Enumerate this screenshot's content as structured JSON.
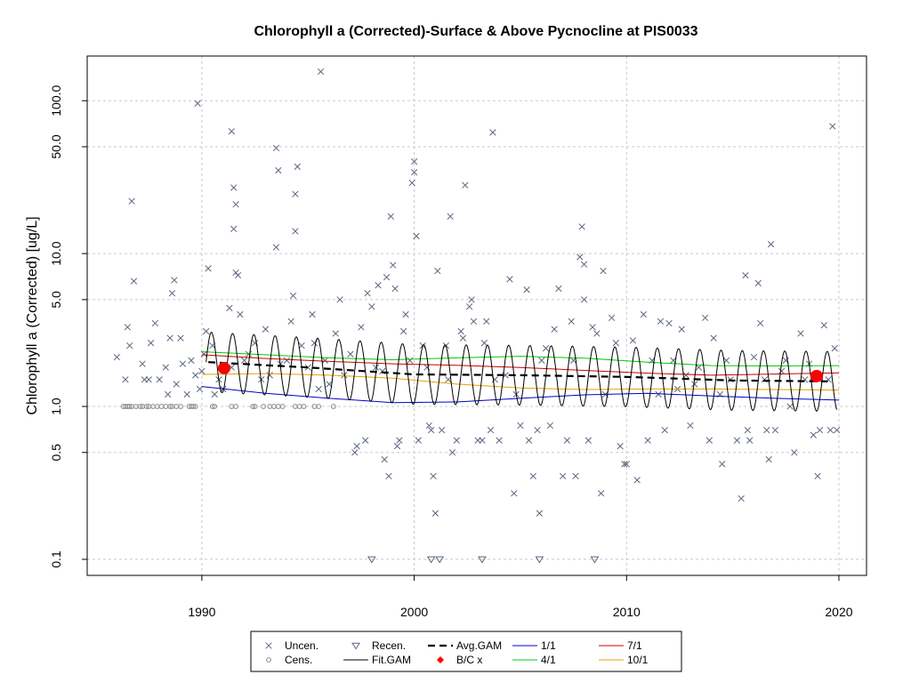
{
  "chart_data": {
    "type": "scatter",
    "title": "Chlorophyll a (Corrected)-Surface & Above Pycnocline at PIS0033",
    "xlabel": "",
    "ylabel": "Chlorophyll a (Corrected) [ug/L]",
    "y_scale": "log",
    "xlim": [
      1984.6,
      2021.3
    ],
    "ylim": [
      0.0785,
      196
    ],
    "x_ticks": [
      "1990",
      "2000",
      "2010",
      "2020"
    ],
    "x_tick_values": [
      1990,
      2000,
      2010,
      2020
    ],
    "y_ticks": [
      "0.1",
      "0.5",
      "1.0",
      "5.0",
      "10.0",
      "50.0",
      "100.0"
    ],
    "y_tick_values": [
      0.1,
      0.5,
      1.0,
      5.0,
      10.0,
      50.0,
      100.0
    ],
    "grid": true,
    "legend_position": "bottom-center",
    "colors": {
      "uncen": "#5a6680",
      "cens": "#8a8a8a",
      "recen": "#5a6680",
      "fit": "#000000",
      "avg": "#000000",
      "bc": "#ff0000",
      "q1": "#0000cc",
      "q4": "#00cc00",
      "q7": "#cc0000",
      "q10": "#e8a000"
    },
    "legend": [
      {
        "key": "uncen",
        "label": "Uncen."
      },
      {
        "key": "cens",
        "label": "Cens."
      },
      {
        "key": "recen",
        "label": "Recen."
      },
      {
        "key": "fit",
        "label": "Fit.GAM"
      },
      {
        "key": "avg",
        "label": "Avg.GAM"
      },
      {
        "key": "bc",
        "label": "B/C x"
      },
      {
        "key": "q1",
        "label": "1/1"
      },
      {
        "key": "q4",
        "label": "4/1"
      },
      {
        "key": "q7",
        "label": "7/1"
      },
      {
        "key": "q10",
        "label": "10/1"
      }
    ],
    "uncensored": [
      [
        1986.0,
        2.1
      ],
      [
        1986.4,
        1.5
      ],
      [
        1986.5,
        3.3
      ],
      [
        1986.6,
        2.5
      ],
      [
        1986.7,
        22
      ],
      [
        1986.8,
        6.6
      ],
      [
        1987.2,
        1.9
      ],
      [
        1987.3,
        1.5
      ],
      [
        1987.5,
        1.5
      ],
      [
        1987.6,
        2.6
      ],
      [
        1987.8,
        3.5
      ],
      [
        1988.0,
        1.5
      ],
      [
        1988.3,
        1.8
      ],
      [
        1988.4,
        1.2
      ],
      [
        1988.5,
        2.8
      ],
      [
        1988.6,
        5.5
      ],
      [
        1988.7,
        6.7
      ],
      [
        1988.8,
        1.4
      ],
      [
        1989.0,
        2.8
      ],
      [
        1989.1,
        1.9
      ],
      [
        1989.3,
        1.2
      ],
      [
        1989.5,
        2.0
      ],
      [
        1989.7,
        1.6
      ],
      [
        1989.8,
        96
      ],
      [
        1989.9,
        1.3
      ],
      [
        1990.0,
        1.7
      ],
      [
        1990.1,
        2.2
      ],
      [
        1990.2,
        3.1
      ],
      [
        1990.3,
        8.0
      ],
      [
        1990.5,
        2.5
      ],
      [
        1990.6,
        1.2
      ],
      [
        1990.8,
        1.5
      ],
      [
        1991.0,
        1.3
      ],
      [
        1991.3,
        4.4
      ],
      [
        1991.4,
        1.8
      ],
      [
        1991.4,
        63
      ],
      [
        1991.5,
        14.5
      ],
      [
        1991.5,
        27
      ],
      [
        1991.6,
        21
      ],
      [
        1991.6,
        7.5
      ],
      [
        1991.7,
        7.2
      ],
      [
        1991.8,
        4.0
      ],
      [
        1992.0,
        2.0
      ],
      [
        1992.2,
        2.2
      ],
      [
        1992.5,
        2.6
      ],
      [
        1992.8,
        1.5
      ],
      [
        1993.0,
        3.2
      ],
      [
        1993.2,
        1.6
      ],
      [
        1993.5,
        11
      ],
      [
        1993.5,
        49
      ],
      [
        1993.6,
        35
      ],
      [
        1993.7,
        1.9
      ],
      [
        1994.0,
        2.0
      ],
      [
        1994.2,
        3.6
      ],
      [
        1994.3,
        5.3
      ],
      [
        1994.4,
        14
      ],
      [
        1994.4,
        24.5
      ],
      [
        1994.5,
        37
      ],
      [
        1994.7,
        2.5
      ],
      [
        1995.0,
        1.8
      ],
      [
        1995.2,
        4.0
      ],
      [
        1995.3,
        2.6
      ],
      [
        1995.5,
        1.3
      ],
      [
        1995.6,
        155
      ],
      [
        1995.8,
        2.0
      ],
      [
        1996.0,
        1.4
      ],
      [
        1996.3,
        3.0
      ],
      [
        1996.5,
        5.0
      ],
      [
        1996.7,
        1.6
      ],
      [
        1997.0,
        2.2
      ],
      [
        1997.2,
        0.5
      ],
      [
        1997.3,
        0.55
      ],
      [
        1997.5,
        3.3
      ],
      [
        1997.7,
        0.6
      ],
      [
        1997.8,
        5.5
      ],
      [
        1998.0,
        4.5
      ],
      [
        1998.2,
        1.8
      ],
      [
        1998.3,
        6.2
      ],
      [
        1998.5,
        1.7
      ],
      [
        1998.6,
        0.45
      ],
      [
        1998.7,
        7.0
      ],
      [
        1998.8,
        0.35
      ],
      [
        1998.9,
        17.5
      ],
      [
        1999.0,
        8.4
      ],
      [
        1999.1,
        5.9
      ],
      [
        1999.2,
        0.55
      ],
      [
        1999.3,
        0.6
      ],
      [
        1999.5,
        3.1
      ],
      [
        1999.6,
        4.0
      ],
      [
        1999.8,
        2.0
      ],
      [
        1999.9,
        29
      ],
      [
        2000.0,
        34
      ],
      [
        2000.0,
        40
      ],
      [
        2000.1,
        13
      ],
      [
        2000.2,
        0.6
      ],
      [
        2000.4,
        2.5
      ],
      [
        2000.6,
        1.8
      ],
      [
        2000.7,
        0.75
      ],
      [
        2000.8,
        0.7
      ],
      [
        2000.9,
        0.35
      ],
      [
        2001.0,
        0.2
      ],
      [
        2001.1,
        7.7
      ],
      [
        2001.3,
        0.7
      ],
      [
        2001.5,
        2.5
      ],
      [
        2001.6,
        1.5
      ],
      [
        2001.7,
        17.5
      ],
      [
        2001.8,
        0.5
      ],
      [
        2002.0,
        0.6
      ],
      [
        2002.2,
        3.1
      ],
      [
        2002.3,
        2.8
      ],
      [
        2002.4,
        28
      ],
      [
        2002.6,
        4.5
      ],
      [
        2002.7,
        5.0
      ],
      [
        2002.8,
        3.6
      ],
      [
        2003.0,
        0.6
      ],
      [
        2003.2,
        0.6
      ],
      [
        2003.3,
        2.6
      ],
      [
        2003.4,
        3.6
      ],
      [
        2003.6,
        0.7
      ],
      [
        2003.7,
        62
      ],
      [
        2003.8,
        1.5
      ],
      [
        2004.0,
        0.6
      ],
      [
        2004.3,
        1.6
      ],
      [
        2004.5,
        6.8
      ],
      [
        2004.7,
        0.27
      ],
      [
        2004.8,
        1.2
      ],
      [
        2005.0,
        0.75
      ],
      [
        2005.3,
        5.8
      ],
      [
        2005.4,
        0.6
      ],
      [
        2005.6,
        0.35
      ],
      [
        2005.8,
        0.7
      ],
      [
        2005.9,
        0.2
      ],
      [
        2006.0,
        2.0
      ],
      [
        2006.2,
        2.4
      ],
      [
        2006.4,
        0.75
      ],
      [
        2006.6,
        3.2
      ],
      [
        2006.8,
        5.9
      ],
      [
        2007.0,
        0.35
      ],
      [
        2007.2,
        0.6
      ],
      [
        2007.4,
        3.6
      ],
      [
        2007.5,
        2.0
      ],
      [
        2007.6,
        0.35
      ],
      [
        2007.8,
        9.5
      ],
      [
        2007.9,
        15
      ],
      [
        2008.0,
        8.5
      ],
      [
        2008.0,
        5.0
      ],
      [
        2008.2,
        0.6
      ],
      [
        2008.4,
        3.3
      ],
      [
        2008.6,
        3.0
      ],
      [
        2008.8,
        0.27
      ],
      [
        2008.9,
        7.7
      ],
      [
        2009.0,
        1.2
      ],
      [
        2009.3,
        3.8
      ],
      [
        2009.5,
        2.6
      ],
      [
        2009.7,
        0.55
      ],
      [
        2009.9,
        0.42
      ],
      [
        2010.0,
        0.42
      ],
      [
        2010.3,
        2.7
      ],
      [
        2010.5,
        0.33
      ],
      [
        2010.8,
        4.0
      ],
      [
        2011.0,
        0.6
      ],
      [
        2011.2,
        2.0
      ],
      [
        2011.5,
        1.2
      ],
      [
        2011.6,
        3.6
      ],
      [
        2011.8,
        0.7
      ],
      [
        2012.0,
        3.5
      ],
      [
        2012.2,
        2.0
      ],
      [
        2012.4,
        1.3
      ],
      [
        2012.6,
        3.2
      ],
      [
        2012.8,
        1.6
      ],
      [
        2013.0,
        0.75
      ],
      [
        2013.2,
        1.4
      ],
      [
        2013.4,
        1.8
      ],
      [
        2013.7,
        3.8
      ],
      [
        2013.9,
        0.6
      ],
      [
        2014.1,
        2.8
      ],
      [
        2014.4,
        1.2
      ],
      [
        2014.5,
        0.42
      ],
      [
        2014.7,
        2.0
      ],
      [
        2014.9,
        1.5
      ],
      [
        2015.2,
        0.6
      ],
      [
        2015.4,
        0.25
      ],
      [
        2015.6,
        7.2
      ],
      [
        2015.7,
        0.7
      ],
      [
        2015.8,
        0.6
      ],
      [
        2016.0,
        2.1
      ],
      [
        2016.2,
        6.4
      ],
      [
        2016.3,
        3.5
      ],
      [
        2016.5,
        1.5
      ],
      [
        2016.6,
        0.7
      ],
      [
        2016.7,
        0.45
      ],
      [
        2016.8,
        11.5
      ],
      [
        2017.0,
        0.7
      ],
      [
        2017.3,
        1.7
      ],
      [
        2017.5,
        2.0
      ],
      [
        2017.7,
        1.0
      ],
      [
        2017.9,
        0.5
      ],
      [
        2018.2,
        3.0
      ],
      [
        2018.4,
        1.5
      ],
      [
        2018.6,
        1.9
      ],
      [
        2018.8,
        0.65
      ],
      [
        2019.0,
        0.35
      ],
      [
        2019.1,
        0.7
      ],
      [
        2019.3,
        3.4
      ],
      [
        2019.5,
        1.5
      ],
      [
        2019.6,
        0.7
      ],
      [
        2019.7,
        68
      ],
      [
        2019.8,
        2.4
      ],
      [
        2019.9,
        0.7
      ]
    ],
    "censored": [
      [
        1986.3,
        1.0
      ],
      [
        1986.4,
        1.0
      ],
      [
        1986.5,
        1.0
      ],
      [
        1986.6,
        1.0
      ],
      [
        1986.7,
        1.0
      ],
      [
        1986.9,
        1.0
      ],
      [
        1987.1,
        1.0
      ],
      [
        1987.2,
        1.0
      ],
      [
        1987.4,
        1.0
      ],
      [
        1987.5,
        1.0
      ],
      [
        1987.7,
        1.0
      ],
      [
        1987.9,
        1.0
      ],
      [
        1988.1,
        1.0
      ],
      [
        1988.3,
        1.0
      ],
      [
        1988.5,
        1.0
      ],
      [
        1988.6,
        1.0
      ],
      [
        1988.8,
        1.0
      ],
      [
        1989.0,
        1.0
      ],
      [
        1989.4,
        1.0
      ],
      [
        1989.5,
        1.0
      ],
      [
        1989.6,
        1.0
      ],
      [
        1989.7,
        1.0
      ],
      [
        1990.5,
        1.0
      ],
      [
        1990.6,
        1.0
      ],
      [
        1991.4,
        1.0
      ],
      [
        1991.6,
        1.0
      ],
      [
        1992.4,
        1.0
      ],
      [
        1992.5,
        1.0
      ],
      [
        1992.9,
        1.0
      ],
      [
        1993.2,
        1.0
      ],
      [
        1993.4,
        1.0
      ],
      [
        1993.6,
        1.0
      ],
      [
        1993.8,
        1.0
      ],
      [
        1994.4,
        1.0
      ],
      [
        1994.6,
        1.0
      ],
      [
        1994.8,
        1.0
      ],
      [
        1995.3,
        1.0
      ],
      [
        1995.5,
        1.0
      ],
      [
        1996.2,
        1.0
      ]
    ],
    "recensored": [
      [
        1998.0,
        0.1
      ],
      [
        2000.8,
        0.1
      ],
      [
        2001.2,
        0.1
      ],
      [
        2003.2,
        0.1
      ],
      [
        2005.9,
        0.1
      ],
      [
        2008.5,
        0.1
      ]
    ],
    "bc_points": [
      [
        1991.05,
        1.78
      ],
      [
        2018.95,
        1.58
      ]
    ],
    "fit_gam": {
      "start": 1990.2,
      "end": 2019.9,
      "amplitude": 0.45,
      "period_years": 1.0
    },
    "avg_gam": [
      [
        1990.3,
        1.95
      ],
      [
        1995.0,
        1.8
      ],
      [
        2000.0,
        1.62
      ],
      [
        2005.0,
        1.6
      ],
      [
        2010.0,
        1.56
      ],
      [
        2015.0,
        1.48
      ],
      [
        2019.5,
        1.46
      ]
    ],
    "seasonal_lines": {
      "q1": [
        [
          1990.0,
          1.35
        ],
        [
          1993.0,
          1.22
        ],
        [
          1996.0,
          1.13
        ],
        [
          1999.0,
          1.06
        ],
        [
          2002.0,
          1.07
        ],
        [
          2005.0,
          1.13
        ],
        [
          2008.0,
          1.19
        ],
        [
          2011.0,
          1.22
        ],
        [
          2014.0,
          1.17
        ],
        [
          2017.0,
          1.13
        ],
        [
          2020.0,
          1.1
        ]
      ],
      "q4": [
        [
          1990.0,
          2.28
        ],
        [
          1993.0,
          2.18
        ],
        [
          1996.0,
          2.08
        ],
        [
          1999.0,
          2.02
        ],
        [
          2002.0,
          2.08
        ],
        [
          2005.0,
          2.13
        ],
        [
          2008.0,
          2.07
        ],
        [
          2011.0,
          1.95
        ],
        [
          2014.0,
          1.85
        ],
        [
          2017.0,
          1.84
        ],
        [
          2020.0,
          1.85
        ]
      ],
      "q7": [
        [
          1990.0,
          2.18
        ],
        [
          1993.0,
          2.06
        ],
        [
          1996.0,
          1.97
        ],
        [
          1999.0,
          1.9
        ],
        [
          2002.0,
          1.86
        ],
        [
          2005.0,
          1.8
        ],
        [
          2008.0,
          1.72
        ],
        [
          2011.0,
          1.65
        ],
        [
          2014.0,
          1.6
        ],
        [
          2017.0,
          1.63
        ],
        [
          2020.0,
          1.66
        ]
      ],
      "q10": [
        [
          1990.0,
          1.62
        ],
        [
          1993.0,
          1.64
        ],
        [
          1996.0,
          1.6
        ],
        [
          1999.0,
          1.53
        ],
        [
          2002.0,
          1.4
        ],
        [
          2005.0,
          1.32
        ],
        [
          2008.0,
          1.29
        ],
        [
          2011.0,
          1.3
        ],
        [
          2014.0,
          1.3
        ],
        [
          2017.0,
          1.29
        ],
        [
          2020.0,
          1.28
        ]
      ]
    }
  }
}
